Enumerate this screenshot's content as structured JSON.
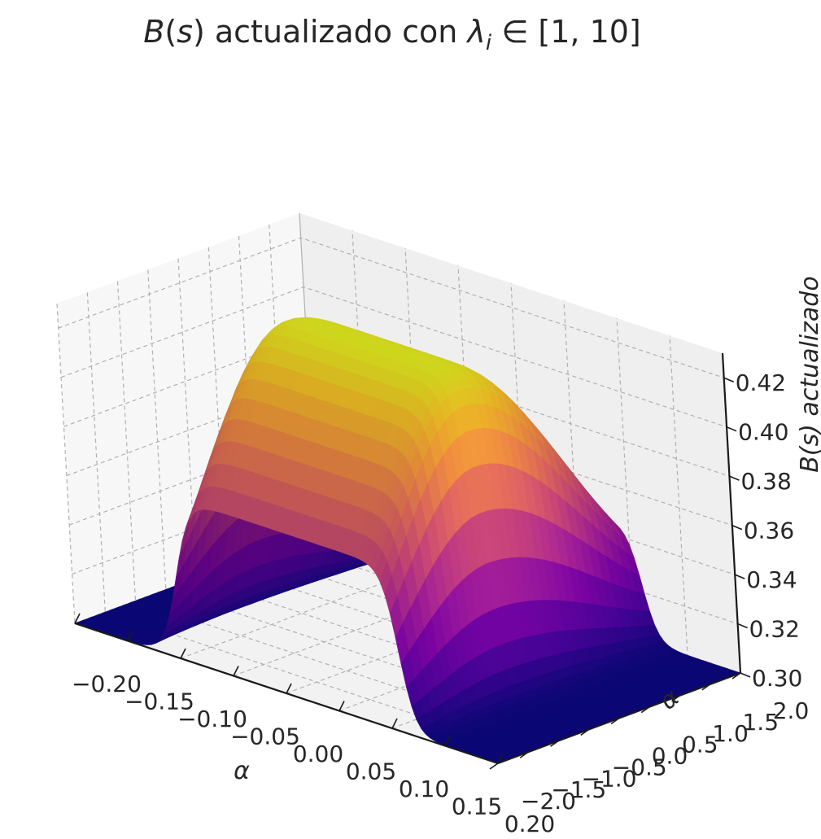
{
  "chart_data": {
    "type": "surface3d",
    "title": "B(s) actualizado con λi ∈ [1, 10]",
    "title_parts": {
      "func": "B",
      "paren_open": "(",
      "var": "s",
      "paren_close": ")",
      "text": " actualizado con ",
      "lambda": "λ",
      "sub": "i",
      "rest": " ∈ [1, 10]"
    },
    "xlabel": "α",
    "ylabel": "α",
    "zlabel": "B(s) actualizado",
    "x_ticks": [
      "−0.20",
      "−0.15",
      "−0.10",
      "−0.05",
      "0.00",
      "0.05",
      "0.10",
      "0.15",
      "0.20"
    ],
    "y_ticks": [
      "−2.0",
      "−1.5",
      "−1.0",
      "−0.5",
      "0.0",
      "0.5",
      "1.0",
      "1.5",
      "2.0"
    ],
    "z_ticks": [
      "0.30",
      "0.32",
      "0.34",
      "0.36",
      "0.38",
      "0.40",
      "0.42"
    ],
    "xlim": [
      -0.2,
      0.2
    ],
    "ylim": [
      -2.0,
      2.0
    ],
    "zlim": [
      0.3,
      0.43
    ],
    "surface": {
      "baseline": 0.3,
      "peak": 0.43,
      "x_plateau": [
        -0.1,
        0.11
      ],
      "peak_y": -0.5,
      "edge_value_low_y": 0.366,
      "edge_value_high_y": 0.346
    },
    "colormap": "plasma",
    "grid": true
  }
}
